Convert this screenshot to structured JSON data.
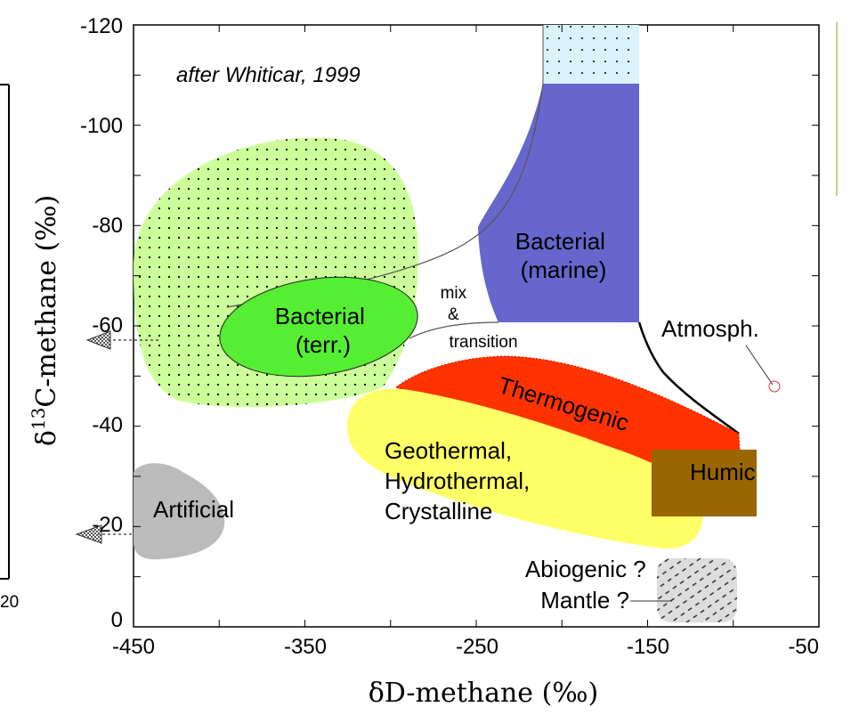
{
  "chart_data": {
    "type": "scatter",
    "title": "",
    "source_note": "after Whiticar, 1999",
    "xlabel": "δD-methane (‰)",
    "ylabel_prefix": "δ",
    "ylabel_sup": "13",
    "ylabel_rest": "C-methane (‰)",
    "xlim": [
      -450,
      -50
    ],
    "ylim": [
      0,
      -120
    ],
    "x_ticks": [
      "-450",
      "-350",
      "-250",
      "-150",
      "-50"
    ],
    "y_ticks": [
      "-120",
      "-100",
      "-80",
      "-60",
      "-40",
      "-20",
      "0"
    ],
    "cropped_left_label": "20",
    "regions": [
      {
        "name": "bacterial-terrestrial-field",
        "label": "",
        "color": "#ccff99"
      },
      {
        "name": "bacterial-marine",
        "label": "Bacterial (marine)",
        "color": "#6666cc"
      },
      {
        "name": "marine-upper",
        "label": "",
        "color": "#d9f2fb"
      },
      {
        "name": "bacterial-terrestrial",
        "label": "Bacterial (terr.)",
        "color": "#55ee33"
      },
      {
        "name": "thermogenic",
        "label": "Thermogenic",
        "color": "#ff3300"
      },
      {
        "name": "geothermal",
        "label": "Geothermal, Hydrothermal, Crystalline",
        "color": "#ffff66"
      },
      {
        "name": "humic",
        "label": "Humic",
        "color": "#996600"
      },
      {
        "name": "artificial",
        "label": "Artificial",
        "color": "#bbbbbb"
      },
      {
        "name": "abiogenic",
        "label": "Abiogenic ? Mantle ?",
        "color": "#dddddd"
      }
    ],
    "annotations": [
      {
        "name": "mix-transition",
        "lines": [
          "mix",
          "&",
          "transition"
        ]
      },
      {
        "name": "atmospheric",
        "lines": [
          "Atmosph."
        ]
      }
    ],
    "labels": {
      "bacterial_marine": [
        "Bacterial",
        "(marine)"
      ],
      "bacterial_terr": [
        "Bacterial",
        "(terr.)"
      ],
      "thermogenic": "Thermogenic",
      "geothermal": [
        "Geothermal,",
        "Hydrothermal,",
        "Crystalline"
      ],
      "humic": "Humic",
      "artificial": "Artificial",
      "abiogenic": [
        "Abiogenic ?",
        "Mantle ?"
      ]
    }
  }
}
